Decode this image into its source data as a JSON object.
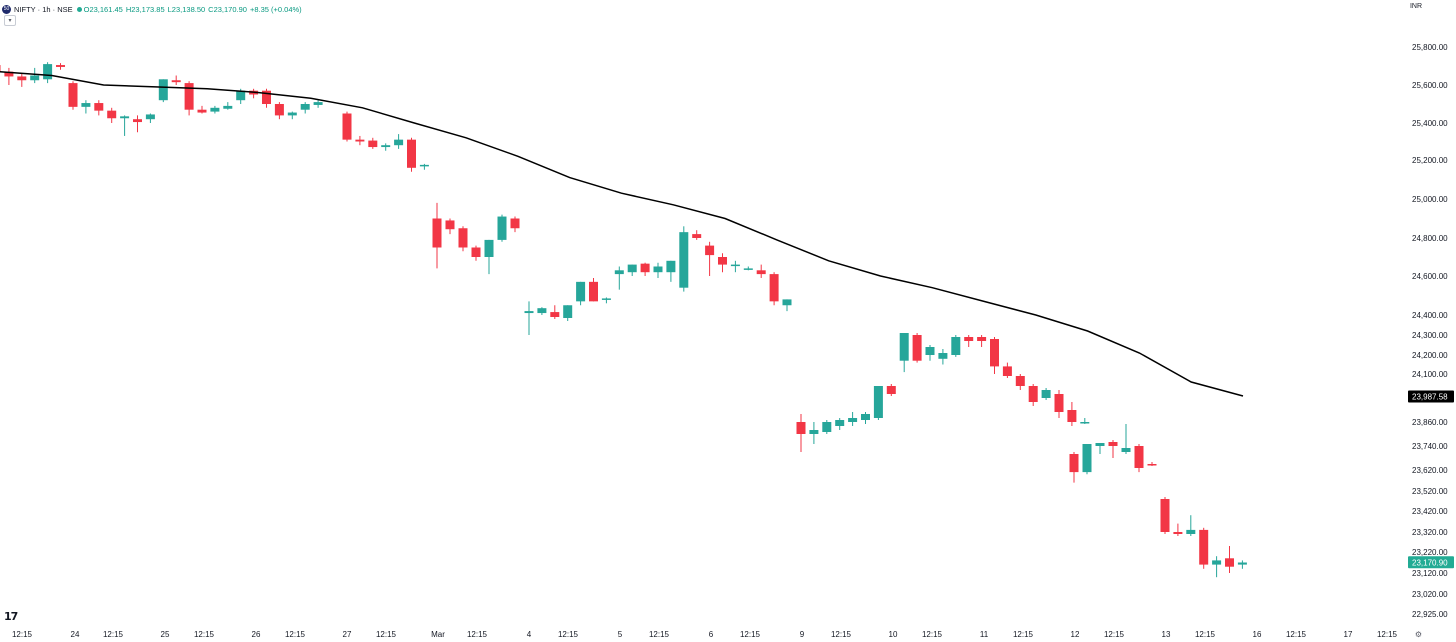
{
  "header": {
    "symbol_title": "NIFTY · 1h · NSE",
    "logo_text": "50",
    "open": "O23,161.45",
    "high": "H23,173.85",
    "low": "L23,138.50",
    "close": "C23,170.90",
    "change": "+8.35 (+0.04%)",
    "collapse_icon": "chevron-down-icon",
    "currency": "INR"
  },
  "footer": {
    "logo_text": "17",
    "settings_icon": "gear-icon"
  },
  "colors": {
    "up": "#26a69a",
    "down": "#f23645",
    "ma": "#000000",
    "axis_text": "#131722",
    "current_price_bg": "#22ab94",
    "ma_label_bg": "#000000"
  },
  "chart_data": {
    "type": "candlestick",
    "series": [
      {
        "name": "",
        "kind": "ohlc",
        "values": [
          [
            25705,
            25730,
            25640,
            25670
          ],
          [
            25670,
            25690,
            25600,
            25645
          ],
          [
            25645,
            25660,
            25590,
            25625
          ],
          [
            25625,
            25690,
            25610,
            25650
          ],
          [
            25630,
            25720,
            25610,
            25710
          ],
          [
            25705,
            25715,
            25680,
            25695
          ],
          [
            25610,
            25620,
            25470,
            25485
          ],
          [
            25485,
            25520,
            25450,
            25505
          ],
          [
            25505,
            25520,
            25440,
            25465
          ],
          [
            25465,
            25480,
            25400,
            25425
          ],
          [
            25425,
            25440,
            25330,
            25435
          ],
          [
            25420,
            25440,
            25350,
            25405
          ],
          [
            25420,
            25450,
            25400,
            25445
          ],
          [
            25520,
            25630,
            25510,
            25630
          ],
          [
            25625,
            25650,
            25600,
            25615
          ],
          [
            25610,
            25620,
            25440,
            25470
          ],
          [
            25470,
            25490,
            25450,
            25455
          ],
          [
            25460,
            25490,
            25450,
            25480
          ],
          [
            25475,
            25510,
            25470,
            25490
          ],
          [
            25520,
            25580,
            25500,
            25570
          ],
          [
            25570,
            25580,
            25530,
            25550
          ],
          [
            25570,
            25580,
            25480,
            25500
          ],
          [
            25500,
            25510,
            25420,
            25440
          ],
          [
            25440,
            25460,
            25420,
            25455
          ],
          [
            25470,
            25510,
            25450,
            25500
          ],
          [
            25495,
            25520,
            25480,
            25510
          ],
          [
            25450,
            25460,
            25300,
            25310
          ],
          [
            25310,
            25330,
            25280,
            25300
          ],
          [
            25305,
            25320,
            25260,
            25270
          ],
          [
            25270,
            25290,
            25250,
            25280
          ],
          [
            25280,
            25340,
            25260,
            25310
          ],
          [
            25310,
            25320,
            25140,
            25160
          ],
          [
            25170,
            25180,
            25150,
            25175
          ],
          [
            24900,
            24980,
            24640,
            24750
          ],
          [
            24890,
            24900,
            24820,
            24845
          ],
          [
            24850,
            24860,
            24730,
            24750
          ],
          [
            24750,
            24760,
            24680,
            24700
          ],
          [
            24700,
            24790,
            24610,
            24790
          ],
          [
            24790,
            24920,
            24780,
            24910
          ],
          [
            24900,
            24910,
            24830,
            24850
          ],
          [
            24410,
            24470,
            24300,
            24420
          ],
          [
            24410,
            24440,
            24400,
            24435
          ],
          [
            24415,
            24450,
            24380,
            24390
          ],
          [
            24385,
            24450,
            24370,
            24450
          ],
          [
            24470,
            24570,
            24450,
            24570
          ],
          [
            24570,
            24590,
            24470,
            24470
          ],
          [
            24480,
            24490,
            24460,
            24485
          ],
          [
            24610,
            24650,
            24530,
            24630
          ],
          [
            24620,
            24660,
            24600,
            24660
          ],
          [
            24665,
            24670,
            24600,
            24620
          ],
          [
            24620,
            24670,
            24590,
            24650
          ],
          [
            24620,
            24680,
            24570,
            24680
          ],
          [
            24540,
            24860,
            24520,
            24830
          ],
          [
            24820,
            24840,
            24790,
            24800
          ],
          [
            24760,
            24780,
            24600,
            24710
          ],
          [
            24700,
            24720,
            24620,
            24660
          ],
          [
            24660,
            24680,
            24620,
            24660
          ],
          [
            24640,
            24650,
            24630,
            24640
          ],
          [
            24630,
            24660,
            24590,
            24610
          ],
          [
            24610,
            24620,
            24450,
            24470
          ],
          [
            24450,
            24480,
            24420,
            24480
          ],
          [
            23860,
            23900,
            23710,
            23800
          ],
          [
            23800,
            23860,
            23750,
            23820
          ],
          [
            23810,
            23870,
            23800,
            23860
          ],
          [
            23840,
            23880,
            23820,
            23870
          ],
          [
            23860,
            23910,
            23840,
            23880
          ],
          [
            23870,
            23910,
            23850,
            23900
          ],
          [
            23880,
            24040,
            23870,
            24040
          ],
          [
            24040,
            24050,
            23990,
            24000
          ],
          [
            24170,
            24310,
            24110,
            24310
          ],
          [
            24300,
            24310,
            24160,
            24170
          ],
          [
            24200,
            24250,
            24170,
            24240
          ],
          [
            24180,
            24230,
            24150,
            24210
          ],
          [
            24200,
            24300,
            24190,
            24290
          ],
          [
            24290,
            24300,
            24240,
            24270
          ],
          [
            24290,
            24300,
            24240,
            24270
          ],
          [
            24280,
            24290,
            24100,
            24140
          ],
          [
            24140,
            24160,
            24080,
            24090
          ],
          [
            24090,
            24100,
            24020,
            24040
          ],
          [
            24040,
            24050,
            23940,
            23960
          ],
          [
            23980,
            24030,
            23970,
            24020
          ],
          [
            24000,
            24020,
            23880,
            23910
          ],
          [
            23920,
            23960,
            23840,
            23860
          ],
          [
            23860,
            23880,
            23850,
            23860
          ],
          [
            23700,
            23710,
            23560,
            23610
          ],
          [
            23610,
            23740,
            23600,
            23750
          ],
          [
            23740,
            23750,
            23700,
            23755
          ],
          [
            23760,
            23770,
            23680,
            23740
          ],
          [
            23710,
            23850,
            23700,
            23730
          ],
          [
            23740,
            23750,
            23610,
            23630
          ],
          [
            23650,
            23660,
            23640,
            23645
          ],
          [
            23480,
            23490,
            23310,
            23320
          ],
          [
            23320,
            23360,
            23300,
            23310
          ],
          [
            23310,
            23400,
            23300,
            23330
          ],
          [
            23330,
            23340,
            23140,
            23160
          ],
          [
            23160,
            23200,
            23100,
            23180
          ],
          [
            23190,
            23250,
            23120,
            23150
          ],
          [
            23160,
            23180,
            23140,
            23170
          ]
        ]
      },
      {
        "name": "",
        "kind": "line",
        "values": [
          25670,
          25650,
          25600,
          25590,
          25580,
          25560,
          25530,
          25480,
          25400,
          25320,
          25220,
          25110,
          25030,
          24970,
          24900,
          24790,
          24680,
          24600,
          24540,
          24470,
          24400,
          24320,
          24210,
          24060,
          23990
        ]
      }
    ],
    "y_ticks": [
      "25,800.00",
      "25,600.00",
      "25,400.00",
      "25,200.00",
      "25,000.00",
      "24,800.00",
      "24,600.00",
      "24,400.00",
      "24,300.00",
      "24,200.00",
      "24,100.00",
      "23,860.00",
      "23,740.00",
      "23,620.00",
      "23,520.00",
      "23,420.00",
      "23,320.00",
      "23,220.00",
      "23,120.00",
      "23,020.00",
      "22,925.00"
    ],
    "x_ticks": [
      "12:15",
      "24",
      "12:15",
      "25",
      "12:15",
      "26",
      "12:15",
      "27",
      "12:15",
      "Mar",
      "12:15",
      "4",
      "12:15",
      "5",
      "12:15",
      "6",
      "12:15",
      "9",
      "12:15",
      "10",
      "12:15",
      "11",
      "12:15",
      "12",
      "12:15",
      "13",
      "12:15",
      "16",
      "12:15",
      "17",
      "12:15"
    ],
    "price_labels": {
      "ma_value": "23,987.58",
      "current_price": "23,170.90"
    }
  }
}
